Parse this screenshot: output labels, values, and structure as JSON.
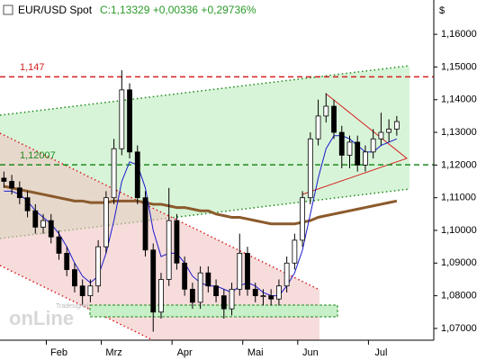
{
  "chart_data": {
    "type": "candlestick",
    "title": "EUR/USD Spot",
    "subtitle": "C:1,13329 +0,00336 +0,29736%",
    "y_axis_label": "$",
    "watermark": {
      "brand": "Tradesignal",
      "logo": "onLine"
    },
    "categories": [
      null,
      null,
      null,
      null,
      null,
      null,
      null,
      "Feb",
      null,
      null,
      null,
      null,
      null,
      null,
      "Mrz",
      null,
      null,
      null,
      null,
      null,
      null,
      null,
      null,
      "Apr",
      null,
      null,
      null,
      null,
      null,
      null,
      null,
      null,
      "Mai",
      null,
      null,
      null,
      null,
      null,
      null,
      "Jun",
      null,
      null,
      null,
      null,
      null,
      null,
      null,
      null,
      "Jul",
      null,
      null
    ],
    "open": [
      1.116,
      1.115,
      1.113,
      1.11,
      1.106,
      1.101,
      1.103,
      1.098,
      1.093,
      1.088,
      1.083,
      1.08,
      1.083,
      1.095,
      1.11,
      1.125,
      1.143,
      1.124,
      1.11,
      1.094,
      1.075,
      1.085,
      1.103,
      1.09,
      1.082,
      1.078,
      1.087,
      1.083,
      1.08,
      1.076,
      1.082,
      1.093,
      1.082,
      1.08,
      1.08,
      1.079,
      1.083,
      1.09,
      1.097,
      1.11,
      1.128,
      1.135,
      1.138,
      1.13,
      1.123,
      1.127,
      1.12,
      1.124,
      1.128,
      1.13,
      1.131
    ],
    "high": [
      1.118,
      1.117,
      1.115,
      1.112,
      1.108,
      1.105,
      1.105,
      1.1,
      1.095,
      1.09,
      1.085,
      1.085,
      1.097,
      1.112,
      1.128,
      1.149,
      1.145,
      1.126,
      1.112,
      1.096,
      1.087,
      1.113,
      1.105,
      1.092,
      1.084,
      1.089,
      1.089,
      1.085,
      1.082,
      1.084,
      1.099,
      1.095,
      1.084,
      1.082,
      1.082,
      1.085,
      1.092,
      1.099,
      1.112,
      1.13,
      1.14,
      1.142,
      1.14,
      1.132,
      1.129,
      1.129,
      1.126,
      1.131,
      1.136,
      1.134,
      1.135
    ],
    "low": [
      1.113,
      1.111,
      1.108,
      1.104,
      1.099,
      1.099,
      1.096,
      1.091,
      1.086,
      1.081,
      1.077,
      1.078,
      1.081,
      1.093,
      1.108,
      1.123,
      1.122,
      1.108,
      1.092,
      1.069,
      1.073,
      1.083,
      1.088,
      1.08,
      1.076,
      1.076,
      1.081,
      1.078,
      1.073,
      1.074,
      1.08,
      1.08,
      1.078,
      1.077,
      1.077,
      1.077,
      1.081,
      1.088,
      1.095,
      1.108,
      1.126,
      1.133,
      1.128,
      1.119,
      1.119,
      1.118,
      1.118,
      1.122,
      1.126,
      1.127,
      1.129
    ],
    "close": [
      1.115,
      1.113,
      1.11,
      1.106,
      1.101,
      1.103,
      1.098,
      1.093,
      1.088,
      1.083,
      1.08,
      1.083,
      1.095,
      1.11,
      1.125,
      1.143,
      1.124,
      1.11,
      1.094,
      1.075,
      1.085,
      1.103,
      1.09,
      1.082,
      1.078,
      1.087,
      1.083,
      1.08,
      1.076,
      1.082,
      1.093,
      1.082,
      1.08,
      1.08,
      1.079,
      1.083,
      1.09,
      1.097,
      1.11,
      1.128,
      1.135,
      1.138,
      1.13,
      1.123,
      1.127,
      1.12,
      1.124,
      1.128,
      1.13,
      1.131,
      1.1333
    ],
    "up_color": "#ffffff",
    "down_color": "#000000",
    "series": [
      {
        "color": "#8b5a2b",
        "values": [
          1.1135,
          1.113,
          1.1125,
          1.112,
          1.1115,
          1.111,
          1.1105,
          1.11,
          1.1095,
          1.109,
          1.109,
          1.1085,
          1.1085,
          1.1085,
          1.109,
          1.109,
          1.109,
          1.109,
          1.1085,
          1.108,
          1.108,
          1.1075,
          1.107,
          1.107,
          1.1065,
          1.106,
          1.106,
          1.105,
          1.1045,
          1.104,
          1.104,
          1.1035,
          1.103,
          1.1025,
          1.102,
          1.102,
          1.102,
          1.102,
          1.1025,
          1.103,
          1.104,
          1.1045,
          1.105,
          1.1055,
          1.106,
          1.1065,
          1.107,
          1.1075,
          1.108,
          1.1085,
          1.109
        ]
      },
      {
        "color": "#1a1acc",
        "values": [
          1.112,
          1.112,
          1.111,
          1.109,
          1.106,
          1.104,
          1.102,
          1.099,
          1.095,
          1.09,
          1.086,
          1.084,
          1.086,
          1.093,
          1.103,
          1.115,
          1.121,
          1.12,
          1.113,
          1.1,
          1.092,
          1.093,
          1.093,
          1.09,
          1.086,
          1.084,
          1.083,
          1.083,
          1.082,
          1.081,
          1.083,
          1.084,
          1.083,
          1.081,
          1.08,
          1.08,
          1.083,
          1.087,
          1.094,
          1.105,
          1.116,
          1.125,
          1.129,
          1.129,
          1.128,
          1.126,
          1.124,
          1.124,
          1.126,
          1.127,
          1.128
        ]
      }
    ],
    "reference_lines": [
      {
        "value": 1.147,
        "label": "1,147",
        "color": "#d42020"
      },
      {
        "value": 1.12007,
        "label": "1,12007",
        "color": "#1e8a1e"
      }
    ],
    "ylim": [
      1.0664,
      1.1705
    ],
    "yticks": [
      {
        "value": 1.07,
        "label": "1,07000"
      },
      {
        "value": 1.08,
        "label": "1,08000"
      },
      {
        "value": 1.09,
        "label": "1,09000"
      },
      {
        "value": 1.1,
        "label": "1,10000"
      },
      {
        "value": 1.11,
        "label": "1,11000"
      },
      {
        "value": 1.12,
        "label": "1,12000"
      },
      {
        "value": 1.13,
        "label": "1,13000"
      },
      {
        "value": 1.14,
        "label": "1,14000"
      },
      {
        "value": 1.15,
        "label": "1,15000"
      },
      {
        "value": 1.16,
        "label": "1,16000"
      }
    ]
  }
}
